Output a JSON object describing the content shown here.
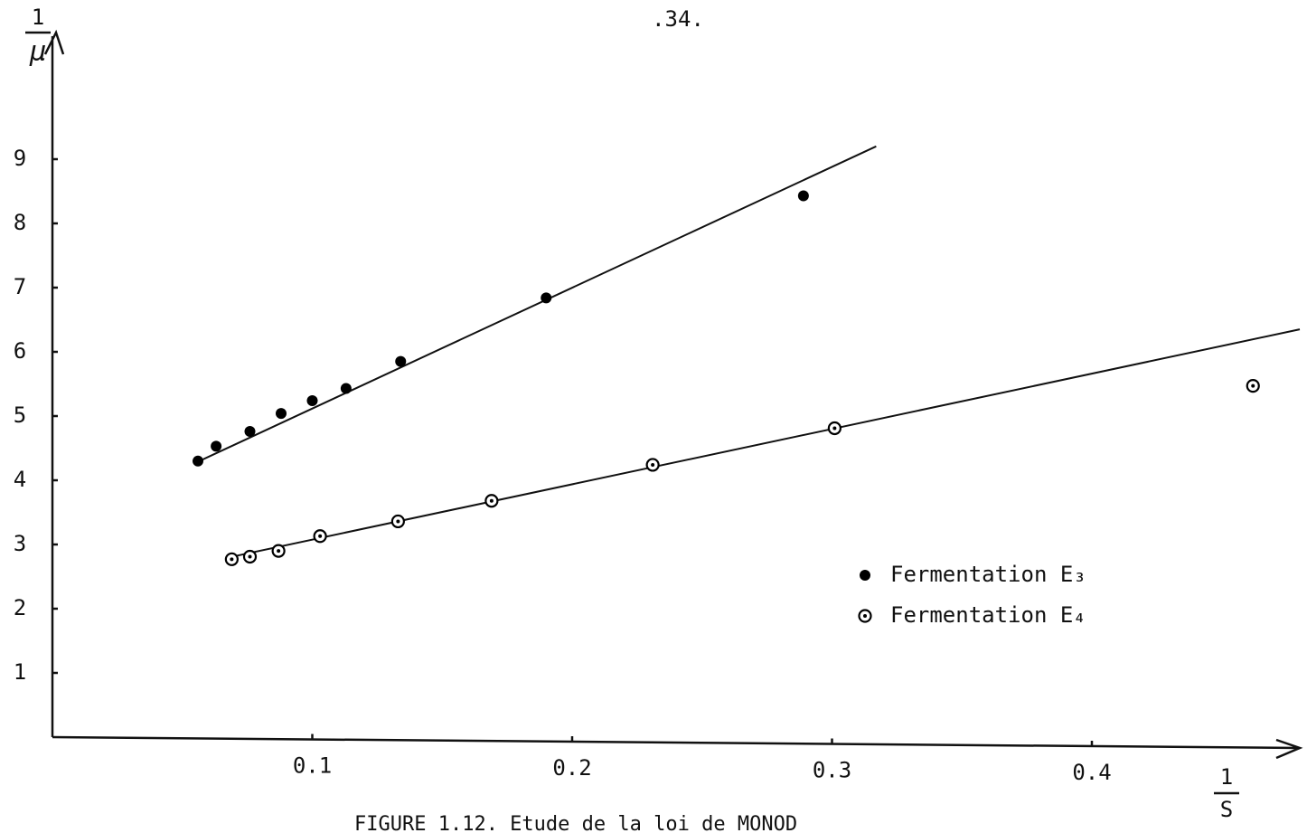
{
  "page_number": ".34.",
  "chart_data": {
    "type": "scatter",
    "y_label": {
      "numerator": "1",
      "denominator": "μ"
    },
    "x_label": {
      "numerator": "1",
      "denominator": "S"
    },
    "caption": "FIGURE 1.12. Etude de la loi de MONOD",
    "xlim": [
      0,
      0.48
    ],
    "xticks": [
      0.1,
      0.2,
      0.3,
      0.4
    ],
    "ylim": [
      0,
      11
    ],
    "yticks": [
      1,
      2,
      3,
      4,
      5,
      6,
      7,
      8,
      9
    ],
    "series": [
      {
        "name": "Fermentation E₃",
        "color": "#000000",
        "marker": "filled",
        "x": [
          0.056,
          0.063,
          0.076,
          0.088,
          0.1,
          0.113,
          0.134,
          0.19,
          0.289
        ],
        "values": [
          4.3,
          4.53,
          4.76,
          5.04,
          5.24,
          5.43,
          5.85,
          6.84,
          8.43
        ]
      },
      {
        "name": "Fermentation E₄",
        "color": "#000000",
        "marker": "ring",
        "x": [
          0.069,
          0.076,
          0.087,
          0.103,
          0.133,
          0.169,
          0.231,
          0.301,
          0.462
        ],
        "values": [
          2.77,
          2.81,
          2.9,
          3.13,
          3.36,
          3.68,
          4.24,
          4.81,
          5.47
        ]
      }
    ],
    "fit_lines": [
      {
        "x": [
          0.055,
          0.317
        ],
        "values": [
          4.27,
          9.2
        ]
      },
      {
        "x": [
          0.068,
          0.48
        ],
        "values": [
          2.8,
          6.35
        ]
      }
    ],
    "legend": "lower-right"
  }
}
